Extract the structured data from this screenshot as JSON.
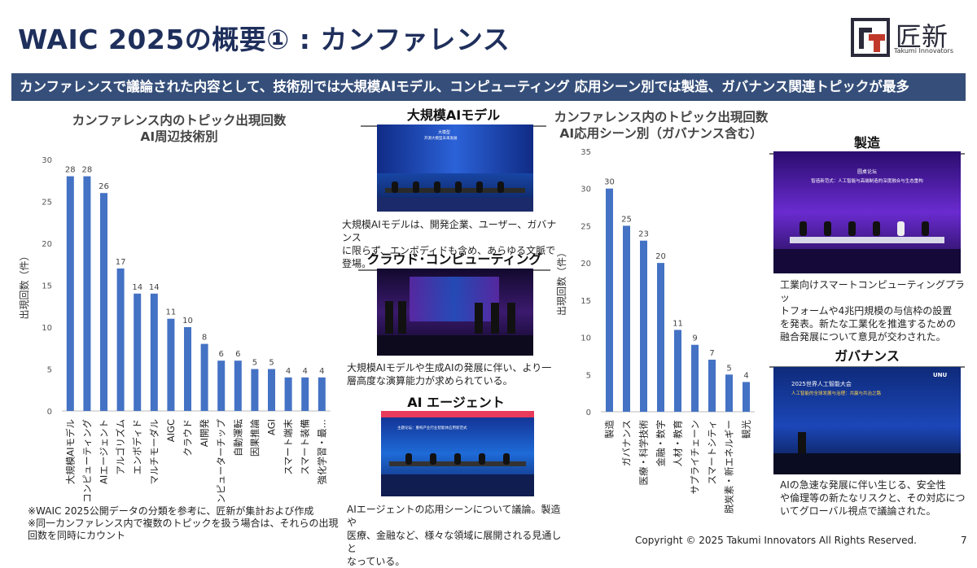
{
  "slide": {
    "title": "WAIC 2025の概要① : カンファレンス",
    "banner": "カンファレンスで議論された内容として、技術別では大規模AIモデル、コンピューティング 応用シーン別では製造、ガバナンス関連トピックが最多",
    "copyright": "Copyright © 2025 Takumi Innovators All Rights Reserved.",
    "page_number": "7"
  },
  "logo": {
    "name": "匠新",
    "subtitle": "Takumi Innovators"
  },
  "chart_data": [
    {
      "type": "bar",
      "title": "カンファレンス内のトピック出現回数",
      "subtitle": "AI周辺技術別",
      "ylabel": "出現回数（件）",
      "ylim": [
        0,
        30
      ],
      "yticks": [
        "0",
        "5",
        "10",
        "15",
        "20",
        "25",
        "30"
      ],
      "categories": [
        "大規模AIモデル",
        "コンピューティング",
        "AIエージェント",
        "アルゴリズム",
        "エンボディド",
        "マルチモーダル",
        "AIGC",
        "クラウド",
        "AI開発",
        "コンピューターチップ",
        "自動運転",
        "因果推論",
        "AGI",
        "スマート端末",
        "スマート装備",
        "強化学習・最…"
      ],
      "values": [
        28,
        28,
        26,
        17,
        14,
        14,
        11,
        10,
        8,
        6,
        6,
        5,
        5,
        4,
        4,
        4
      ],
      "color": "#4472c4",
      "grid": false
    },
    {
      "type": "bar",
      "title": "カンファレンス内のトピック出現回数",
      "subtitle": "AI応用シーン別（ガバナンス含む）",
      "ylabel": "出現回数（件）",
      "ylim": [
        0,
        35
      ],
      "yticks": [
        "0",
        "5",
        "10",
        "15",
        "20",
        "25",
        "30",
        "35"
      ],
      "categories": [
        "製造",
        "ガバナンス",
        "医療・科学技術",
        "金融・数字",
        "人材・教育",
        "サプライチェーン",
        "スマートシティ",
        "脱炭素・新エネルギー",
        "観光"
      ],
      "values": [
        30,
        25,
        23,
        20,
        11,
        9,
        7,
        5,
        4
      ],
      "color": "#4472c4",
      "grid": false
    }
  ],
  "notes": {
    "line1": "※WAIC 2025公開データの分類を参考に、匠新が集計および作成",
    "line2": "※同一カンファレンス内で複数のトピックを扱う場合は、それらの出現",
    "line3": "回数を同時にカウント"
  },
  "sections": {
    "llm": {
      "title": "大規模AIモデル",
      "caption1": "大規模AIモデルは、開発企業、ユーザー、ガバナンス",
      "caption2": "に限らず、エンボディドも含め、あらゆる文脈で登場。",
      "photo_text1": "大模型",
      "photo_text2": "开源大模型未来发展"
    },
    "cloud": {
      "title": "クラウド･コンピューティング",
      "caption1": "大規模AIモデルや生成AIの発展に伴い、より一",
      "caption2": "層高度な演算能力が求められている。"
    },
    "agent": {
      "title": "AI エージェント",
      "caption1": "AIエージェントの応用シーンについて議論。製造や",
      "caption2": "医療、金融など、様々な領域に展開される見通しと",
      "caption3": "なっている。",
      "photo_text": "主题论坛：重构产业行业智能体应用新范式"
    },
    "manufacturing": {
      "title": "製造",
      "caption1": "工業向けスマートコンピューティングプラッ",
      "caption2": "トフォームや4兆円規模の与信枠の設置",
      "caption3": "を発表。新たな工業化を推進するための",
      "caption4": "融合発展について意見が交わされた。",
      "photo_text1": "圆桌论坛",
      "photo_text2": "智造新范式：人工智能与高端制造的深度融合与生态重构"
    },
    "governance": {
      "title": "ガバナンス",
      "caption1": "AIの急速な発展に伴い生じる、安全性",
      "caption2": "や倫理等の新たなリスクと、その対応につ",
      "caption3": "いてグローバル視点で議論された。",
      "photo_text1": "2025世界人工智能大会",
      "photo_text2": "人工智能的全球发展与治理：共赢与共治之路",
      "photo_badge": "UNU"
    }
  }
}
